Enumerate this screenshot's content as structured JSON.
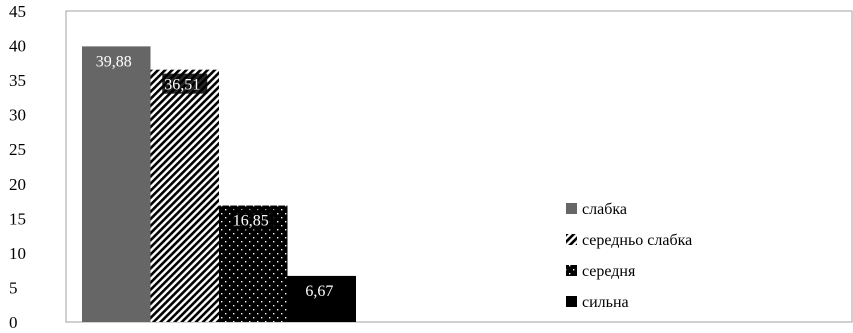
{
  "chart_data": {
    "type": "bar",
    "categories": [
      ""
    ],
    "series": [
      {
        "name": "слабка",
        "values": [
          39.88
        ],
        "label": "39,88",
        "pattern": "solid-gray",
        "color": "#666666"
      },
      {
        "name": "середньо слабка",
        "values": [
          36.51
        ],
        "label": "36,51",
        "pattern": "diagonal-hatch",
        "color": "#000000"
      },
      {
        "name": "середня",
        "values": [
          16.85
        ],
        "label": "16,85",
        "pattern": "dotted",
        "color": "#000000"
      },
      {
        "name": "сильна",
        "values": [
          6.67
        ],
        "label": "6,67",
        "pattern": "solid-black",
        "color": "#000000"
      }
    ],
    "ylim": [
      0,
      45
    ],
    "yticks": [
      "0",
      "5",
      "10",
      "15",
      "20",
      "25",
      "30",
      "35",
      "40",
      "45"
    ],
    "title": "",
    "xlabel": "",
    "ylabel": "",
    "grid": false,
    "legend_position": "right"
  }
}
